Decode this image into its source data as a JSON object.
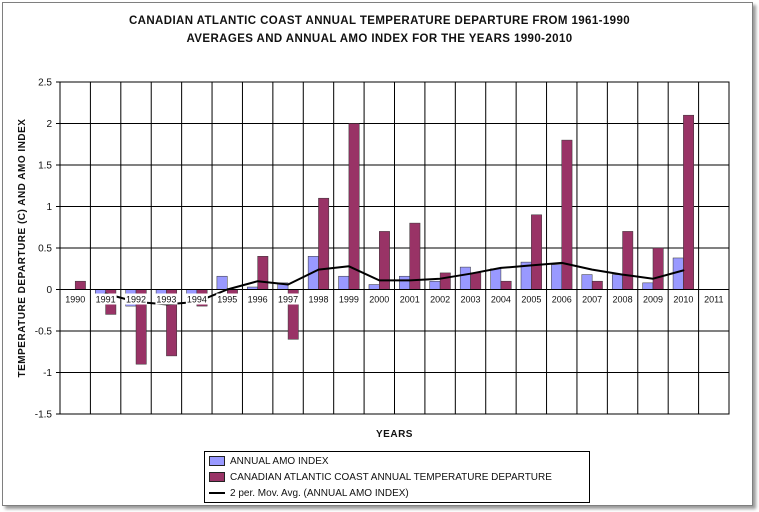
{
  "colors": {
    "amo_fill": "#9999FF",
    "temp_fill": "#993366",
    "moving_avg_line": "#000000",
    "grid": "#000000",
    "plot_bg": "#ffffff"
  },
  "chart_data": {
    "type": "bar",
    "title_lines": [
      "CANADIAN ATLANTIC COAST  ANNUAL TEMPERATURE DEPARTURE FROM 1961-1990",
      "AVERAGES AND ANNUAL AMO INDEX FOR THE YEARS 1990-2010"
    ],
    "xlabel": "YEARS",
    "ylabel": "TEMPERATURE DEPARTURE (C) AND AMO INDEX",
    "ylim": [
      -1.5,
      2.5
    ],
    "yticks": [
      "-1.5",
      "-1",
      "-0.5",
      "0",
      "0.5",
      "1",
      "1.5",
      "2",
      "2.5"
    ],
    "ytick_values": [
      -1.5,
      -1,
      -0.5,
      0,
      0.5,
      1,
      1.5,
      2,
      2.5
    ],
    "grid": true,
    "legend_position": "bottom",
    "categories": [
      "1990",
      "1991",
      "1992",
      "1993",
      "1994",
      "1995",
      "1996",
      "1997",
      "1998",
      "1999",
      "2000",
      "2001",
      "2002",
      "2003",
      "2004",
      "2005",
      "2006",
      "2007",
      "2008",
      "2009",
      "2010",
      "2011"
    ],
    "category_labels": [
      "1990",
      "1991",
      "1992",
      "1993",
      "1994",
      "1995",
      "1996",
      "1997",
      "1998",
      "1999",
      "2000",
      "2001",
      "2002",
      "2003",
      "2004",
      "2005",
      "2006",
      "2007",
      "2008",
      "2009",
      "2010",
      "2011"
    ],
    "series": [
      {
        "name": "ANNUAL AMO INDEX",
        "kind": "bar",
        "values": [
          0.0,
          -0.1,
          -0.2,
          -0.15,
          -0.15,
          0.16,
          0.03,
          0.08,
          0.4,
          0.16,
          0.06,
          0.16,
          0.1,
          0.27,
          0.25,
          0.33,
          0.3,
          0.18,
          0.18,
          0.08,
          0.38,
          null
        ]
      },
      {
        "name": "CANADIAN ATLANTIC COAST ANNUAL TEMPERATURE DEPARTURE",
        "kind": "bar",
        "values": [
          0.1,
          -0.3,
          -0.9,
          -0.8,
          -0.2,
          -0.1,
          0.4,
          -0.6,
          1.1,
          2.0,
          0.7,
          0.8,
          0.2,
          0.2,
          0.1,
          0.9,
          1.8,
          0.1,
          0.7,
          0.5,
          2.1,
          null
        ]
      },
      {
        "name": "2 per. Mov. Avg. (ANNUAL AMO INDEX)",
        "kind": "line",
        "values": [
          null,
          -0.05,
          -0.15,
          -0.18,
          -0.15,
          0.0,
          0.1,
          0.06,
          0.24,
          0.28,
          0.11,
          0.11,
          0.13,
          0.19,
          0.26,
          0.29,
          0.32,
          0.24,
          0.18,
          0.13,
          0.23,
          null
        ]
      }
    ]
  }
}
